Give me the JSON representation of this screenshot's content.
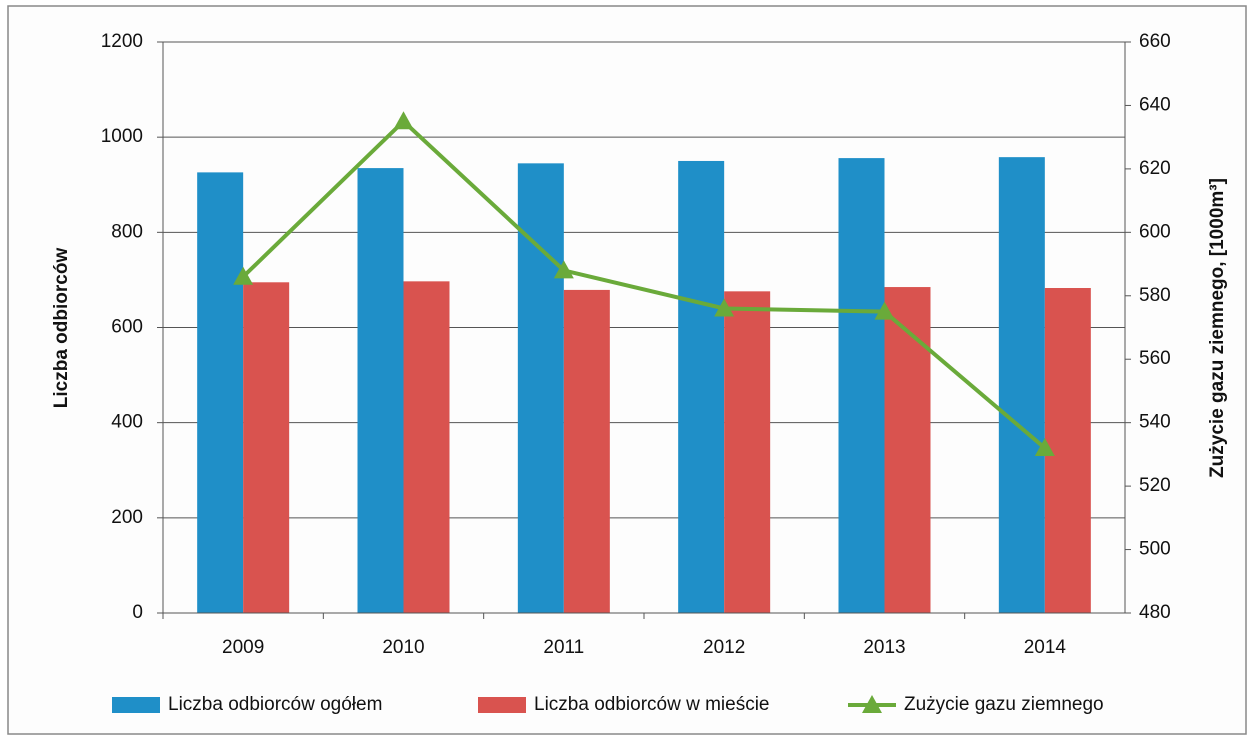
{
  "chart_data": {
    "type": "bar",
    "categories": [
      "2009",
      "2010",
      "2011",
      "2012",
      "2013",
      "2014"
    ],
    "series": [
      {
        "name": "Liczba odbiorców ogółem",
        "color": "#1f8fc8",
        "values": [
          926,
          935,
          945,
          950,
          956,
          958
        ]
      },
      {
        "name": "Liczba odbiorców w mieście",
        "color": "#d9534f",
        "values": [
          695,
          697,
          679,
          676,
          685,
          683
        ]
      },
      {
        "name": "Zużycie gazu ziemnego",
        "color": "#6aaa3a",
        "type": "line",
        "axis": "y2",
        "values": [
          586,
          635,
          588,
          576,
          575,
          532
        ]
      }
    ],
    "y_label": "Liczba odbiorców",
    "y2_label": "Zużycie gazu ziemnego, [1000m³]",
    "ylim": [
      0,
      1200
    ],
    "yticks": [
      0,
      200,
      400,
      600,
      800,
      1000,
      1200
    ],
    "y2lim": [
      480,
      660
    ],
    "y2ticks": [
      480,
      500,
      520,
      540,
      560,
      580,
      600,
      620,
      640,
      660
    ],
    "grid": true,
    "legend": "bottom"
  }
}
